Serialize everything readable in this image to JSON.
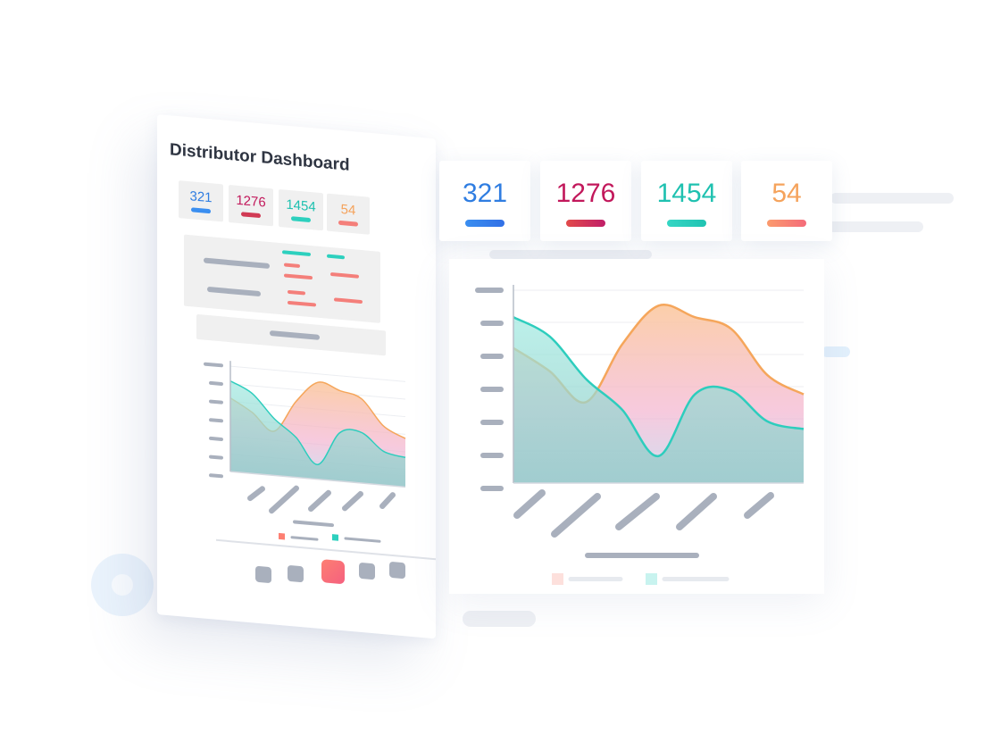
{
  "mobile": {
    "title": "Distributor Dashboard",
    "stats": [
      {
        "value": "321",
        "color": "#2f7de1",
        "bar": "#3a8ef0"
      },
      {
        "value": "1276",
        "color": "#c2185b",
        "bar": "#d13a54"
      },
      {
        "value": "1454",
        "color": "#1fc1b0",
        "bar": "#2dd0be"
      },
      {
        "value": "54",
        "color": "#f5a35c",
        "bar": "#f47f7a"
      }
    ]
  },
  "desktop": {
    "stats": [
      {
        "value": "321",
        "color": "#2f7de1",
        "bar": "#3a8ef0"
      },
      {
        "value": "1276",
        "color": "#c2185b",
        "bar": "#d6395a"
      },
      {
        "value": "1454",
        "color": "#1fc1b0",
        "bar": "#2dd0be"
      },
      {
        "value": "54",
        "color": "#f5a35c",
        "bar": "#f47f7a"
      }
    ]
  },
  "colors": {
    "orange_series": "#f5a65b",
    "teal_series": "#2dcdbd",
    "placeholder": "#a9b0bd"
  },
  "chart_data": {
    "type": "area",
    "title": "",
    "xlabel": "",
    "ylabel": "",
    "x": [
      0,
      1,
      2,
      3,
      4,
      5,
      6,
      7,
      8
    ],
    "ylim": [
      0,
      100
    ],
    "grid": true,
    "legend": "bottom",
    "series": [
      {
        "color": "#f5a65b",
        "values": [
          70,
          58,
          42,
          72,
          92,
          86,
          80,
          56,
          46
        ]
      },
      {
        "color": "#2dcdbd",
        "values": [
          86,
          76,
          54,
          38,
          14,
          46,
          48,
          32,
          28
        ]
      }
    ]
  }
}
